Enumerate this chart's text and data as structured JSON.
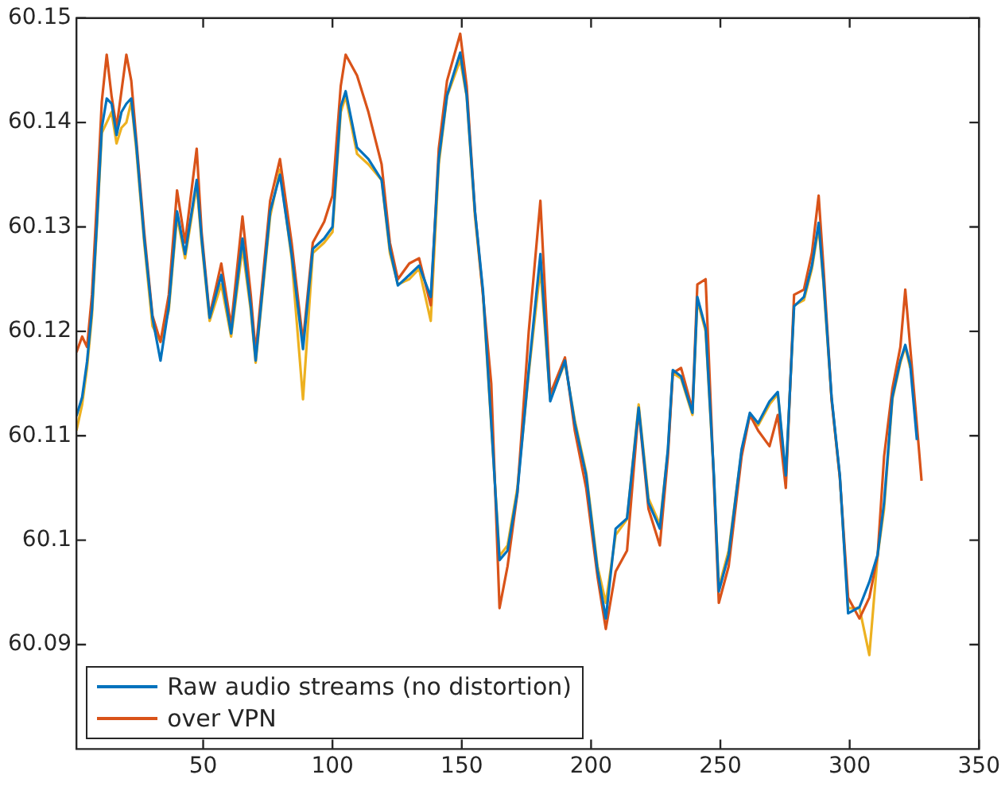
{
  "chart_data": {
    "type": "line",
    "x": [
      1,
      3.2,
      5.1,
      7,
      8.9,
      10.8,
      12.7,
      14.6,
      16.5,
      18.4,
      20.3,
      22.2,
      24.1,
      27.2,
      30.4,
      33.5,
      36.7,
      39.9,
      43,
      47.5,
      49.4,
      52.5,
      57,
      60.8,
      65.2,
      68.4,
      70.3,
      75.9,
      79.7,
      84.2,
      88.6,
      92.4,
      96.8,
      100,
      103.2,
      105.1,
      109.5,
      113.9,
      119,
      122.2,
      125.3,
      129.7,
      133.5,
      138,
      141.1,
      144.3,
      149.4,
      151.9,
      155.1,
      158.2,
      161.4,
      164.6,
      167.7,
      171.5,
      175.9,
      180.4,
      184.2,
      189.9,
      193.7,
      198.1,
      202.5,
      205.7,
      209.5,
      213.9,
      218.4,
      222.2,
      226.6,
      229.7,
      231.6,
      234.8,
      239.2,
      241.1,
      244.3,
      247.5,
      249.4,
      253.2,
      258.2,
      261.4,
      264.6,
      269,
      272.2,
      275.3,
      278.5,
      282.3,
      285.4,
      288,
      289.9,
      293,
      296.2,
      299.4,
      303.8,
      307.6,
      310.8,
      313.3,
      316.5,
      319.6,
      321.5,
      323.4,
      326,
      327.8
    ],
    "series": [
      {
        "name": "Raw audio streams (no distortion)",
        "color": "#0072bd",
        "values": [
          60.1119,
          60.1137,
          60.1171,
          60.1221,
          60.1304,
          60.1395,
          60.1423,
          60.1418,
          60.1388,
          60.141,
          60.1418,
          60.1423,
          60.138,
          60.1289,
          60.1213,
          60.1172,
          60.1224,
          60.1315,
          60.1274,
          60.1345,
          60.1289,
          60.1213,
          60.1254,
          60.1198,
          60.1289,
          60.1224,
          60.1172,
          60.1315,
          60.135,
          60.1274,
          60.1183,
          60.1279,
          60.1289,
          60.13,
          60.1415,
          60.143,
          60.1376,
          60.1365,
          60.1345,
          60.1279,
          60.1244,
          60.1254,
          60.1263,
          60.1233,
          60.1365,
          60.1426,
          60.1467,
          60.1426,
          60.1315,
          60.1239,
          60.1112,
          60.0981,
          60.099,
          60.1046,
          60.1163,
          60.1274,
          60.1133,
          60.1172,
          60.1112,
          60.1062,
          60.0971,
          60.0925,
          60.1011,
          60.1021,
          60.1127,
          60.1036,
          60.1011,
          60.1087,
          60.1163,
          60.1157,
          60.1122,
          60.1233,
          60.1203,
          60.1062,
          60.0951,
          60.0986,
          60.1087,
          60.1122,
          60.1112,
          60.1133,
          60.1142,
          60.1062,
          60.1224,
          60.1233,
          60.1263,
          60.1304,
          60.1248,
          60.1137,
          60.1062,
          60.093,
          60.0936,
          60.096,
          60.0986,
          60.1036,
          60.1137,
          60.1172,
          60.1187,
          60.1168,
          60.1096,
          null
        ]
      },
      {
        "name": "over VPN",
        "color": "#d95319",
        "values": [
          60.118,
          60.1195,
          60.1185,
          60.1235,
          60.1325,
          60.142,
          60.1465,
          60.1425,
          60.1395,
          60.143,
          60.1465,
          60.144,
          60.1385,
          60.1295,
          60.1215,
          60.119,
          60.1235,
          60.1335,
          60.1285,
          60.1375,
          60.1295,
          60.1215,
          60.1265,
          60.1205,
          60.131,
          60.1235,
          60.118,
          60.1325,
          60.1365,
          60.1285,
          60.119,
          60.1285,
          60.1305,
          60.133,
          60.1435,
          60.1465,
          60.1445,
          60.141,
          60.136,
          60.1285,
          60.125,
          60.1265,
          60.127,
          60.1225,
          60.1375,
          60.144,
          60.1485,
          60.1435,
          60.1315,
          60.1235,
          60.115,
          60.0935,
          60.0975,
          60.1045,
          60.12,
          60.1325,
          60.114,
          60.1175,
          60.1105,
          60.105,
          60.0965,
          60.0915,
          60.097,
          60.099,
          60.1125,
          60.103,
          60.0995,
          60.108,
          60.116,
          60.1165,
          60.1125,
          60.1245,
          60.125,
          60.1055,
          60.094,
          60.0975,
          60.108,
          60.112,
          60.1105,
          60.109,
          60.112,
          60.105,
          60.1235,
          60.124,
          60.1275,
          60.133,
          60.126,
          60.1135,
          60.106,
          60.0945,
          60.0925,
          60.0945,
          60.0985,
          60.108,
          60.1145,
          60.1185,
          60.124,
          60.1185,
          60.111,
          60.1057
        ]
      },
      {
        "color": "#edb120",
        "values": [
          60.1105,
          60.113,
          60.1165,
          60.1215,
          60.13,
          60.139,
          60.14,
          60.141,
          60.138,
          60.1395,
          60.14,
          60.142,
          60.1375,
          60.1285,
          60.1205,
          60.119,
          60.122,
          60.131,
          60.127,
          60.134,
          60.1285,
          60.121,
          60.1245,
          60.1195,
          60.128,
          60.122,
          60.117,
          60.131,
          60.1355,
          60.127,
          60.1135,
          60.1275,
          60.1285,
          60.1295,
          60.141,
          60.1425,
          60.137,
          60.136,
          60.1345,
          60.1275,
          60.1245,
          60.125,
          60.126,
          60.121,
          60.136,
          60.1425,
          60.146,
          60.1425,
          60.131,
          60.1235,
          60.111,
          60.0985,
          60.0995,
          60.105,
          60.116,
          60.126,
          60.1135,
          60.117,
          60.1115,
          60.1065,
          60.0975,
          60.094,
          60.1005,
          60.102,
          60.113,
          60.104,
          60.1015,
          60.1085,
          60.116,
          60.1155,
          60.112,
          60.123,
          60.12,
          60.106,
          60.0955,
          60.099,
          60.1085,
          60.112,
          60.111,
          60.113,
          60.114,
          60.106,
          60.1225,
          60.123,
          60.126,
          60.13,
          60.1245,
          60.1135,
          60.106,
          60.0935,
          60.0935,
          60.089,
          60.0985,
          60.103,
          60.1135,
          60.117,
          60.1185,
          60.1165,
          null,
          null
        ]
      }
    ],
    "xlim": [
      1,
      350
    ],
    "xticks": [
      50,
      100,
      150,
      200,
      250,
      300,
      350
    ],
    "ylim": [
      60.08,
      60.15
    ],
    "yticks": [
      60.09,
      60.1,
      60.11,
      60.12,
      60.13,
      60.14,
      60.15
    ],
    "grid": false,
    "legend": "bottom left",
    "marker": "none",
    "line_style": "solid"
  }
}
